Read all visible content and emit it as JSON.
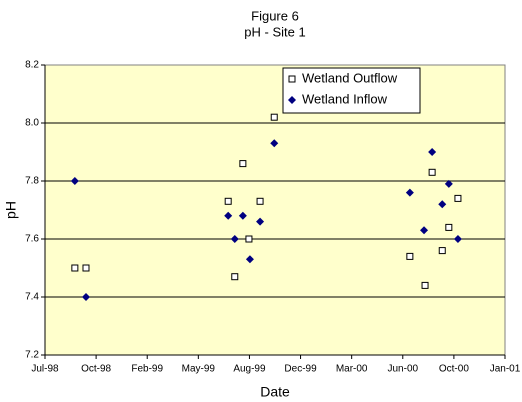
{
  "chart_data": {
    "type": "scatter",
    "title": "Figure 6",
    "subtitle": "pH - Site 1",
    "x_label": "Date",
    "y_label": "pH",
    "xlim": [
      35977,
      36886
    ],
    "xticks": [
      {
        "value": 35977,
        "label": "Jul-98"
      },
      {
        "value": 36078,
        "label": "Oct-98"
      },
      {
        "value": 36179,
        "label": "Feb-99"
      },
      {
        "value": 36280,
        "label": "May-99"
      },
      {
        "value": 36381,
        "label": "Aug-99"
      },
      {
        "value": 36482,
        "label": "Dec-99"
      },
      {
        "value": 36583,
        "label": "Mar-00"
      },
      {
        "value": 36684,
        "label": "Jun-00"
      },
      {
        "value": 36785,
        "label": "Oct-00"
      },
      {
        "value": 36886,
        "label": "Jan-01"
      }
    ],
    "ylim": [
      7.2,
      8.2
    ],
    "yticks": [
      {
        "value": 7.2,
        "label": "7.2"
      },
      {
        "value": 7.4,
        "label": "7.4"
      },
      {
        "value": 7.6,
        "label": "7.6"
      },
      {
        "value": 7.8,
        "label": "7.8"
      },
      {
        "value": 8.0,
        "label": "8.0"
      },
      {
        "value": 8.2,
        "label": "8.2"
      }
    ],
    "grid": true,
    "series": [
      {
        "name": "Wetland Outflow",
        "color": "#000000",
        "marker": "square",
        "x": [
          36036,
          36058,
          36339,
          36352,
          36368,
          36380,
          36402,
          36430,
          36698,
          36728,
          36742,
          36762,
          36775,
          36793
        ],
        "values": [
          7.5,
          7.5,
          7.73,
          7.47,
          7.86,
          7.6,
          7.73,
          8.02,
          7.54,
          7.44,
          7.83,
          7.56,
          7.64,
          7.74
        ]
      },
      {
        "name": "Wetland Inflow",
        "color": "#000080",
        "marker": "diamond",
        "x": [
          36036,
          36058,
          36339,
          36352,
          36368,
          36382,
          36402,
          36430,
          36698,
          36726,
          36742,
          36762,
          36775,
          36793
        ],
        "values": [
          7.8,
          7.4,
          7.68,
          7.6,
          7.68,
          7.53,
          7.66,
          7.93,
          7.76,
          7.63,
          7.9,
          7.72,
          7.79,
          7.6
        ]
      }
    ]
  }
}
